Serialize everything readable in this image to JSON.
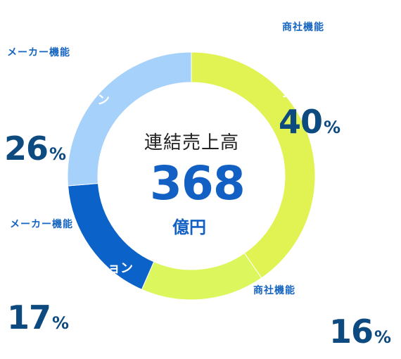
{
  "chart_data": {
    "type": "pie",
    "center": {
      "title": "連結売上高",
      "value": "368",
      "unit": "億円"
    },
    "slices": [
      {
        "label": "商社機能",
        "value": 40,
        "color": "#e0f352"
      },
      {
        "label": "商社機能",
        "value": 16,
        "color": "#dcf65e"
      },
      {
        "label": "メーカー機能",
        "value": 17,
        "color": "#0b62c9"
      },
      {
        "label": "メーカー機能",
        "value": 26,
        "color": "#a6d1fa"
      }
    ],
    "value_unit": "%"
  }
}
